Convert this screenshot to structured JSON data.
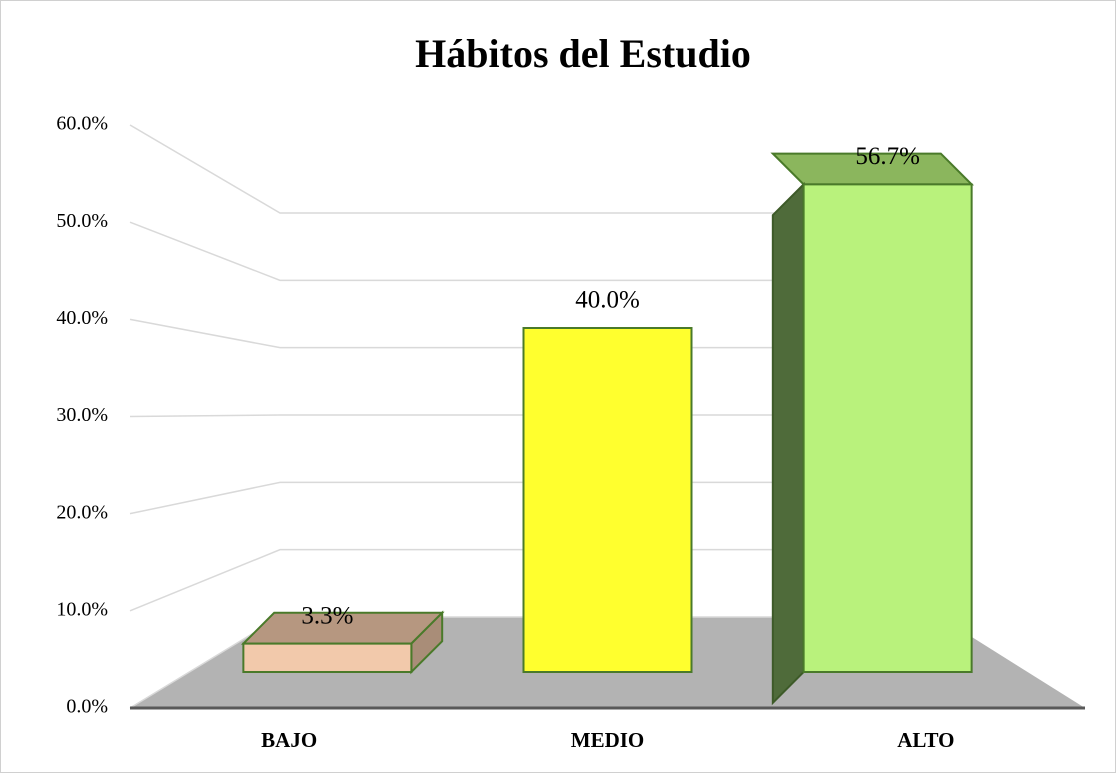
{
  "chart_data": {
    "type": "bar3d",
    "title": "Hábitos del Estudio",
    "categories": [
      "BAJO",
      "MEDIO",
      "ALTO"
    ],
    "values": [
      3.3,
      40.0,
      56.7
    ],
    "value_labels": [
      "3.3%",
      "40.0%",
      "56.7%"
    ],
    "colors": [
      "#f2c9ab",
      "#ffff2e",
      "#b9f27c"
    ],
    "ylim": [
      0,
      60
    ],
    "yticks": [
      {
        "value": 0,
        "label": "0.0%"
      },
      {
        "value": 10,
        "label": "10.0%"
      },
      {
        "value": 20,
        "label": "20.0%"
      },
      {
        "value": 30,
        "label": "30.0%"
      },
      {
        "value": 40,
        "label": "40.0%"
      },
      {
        "value": 50,
        "label": "50.0%"
      },
      {
        "value": 60,
        "label": "60.0%"
      }
    ],
    "grid": true
  }
}
